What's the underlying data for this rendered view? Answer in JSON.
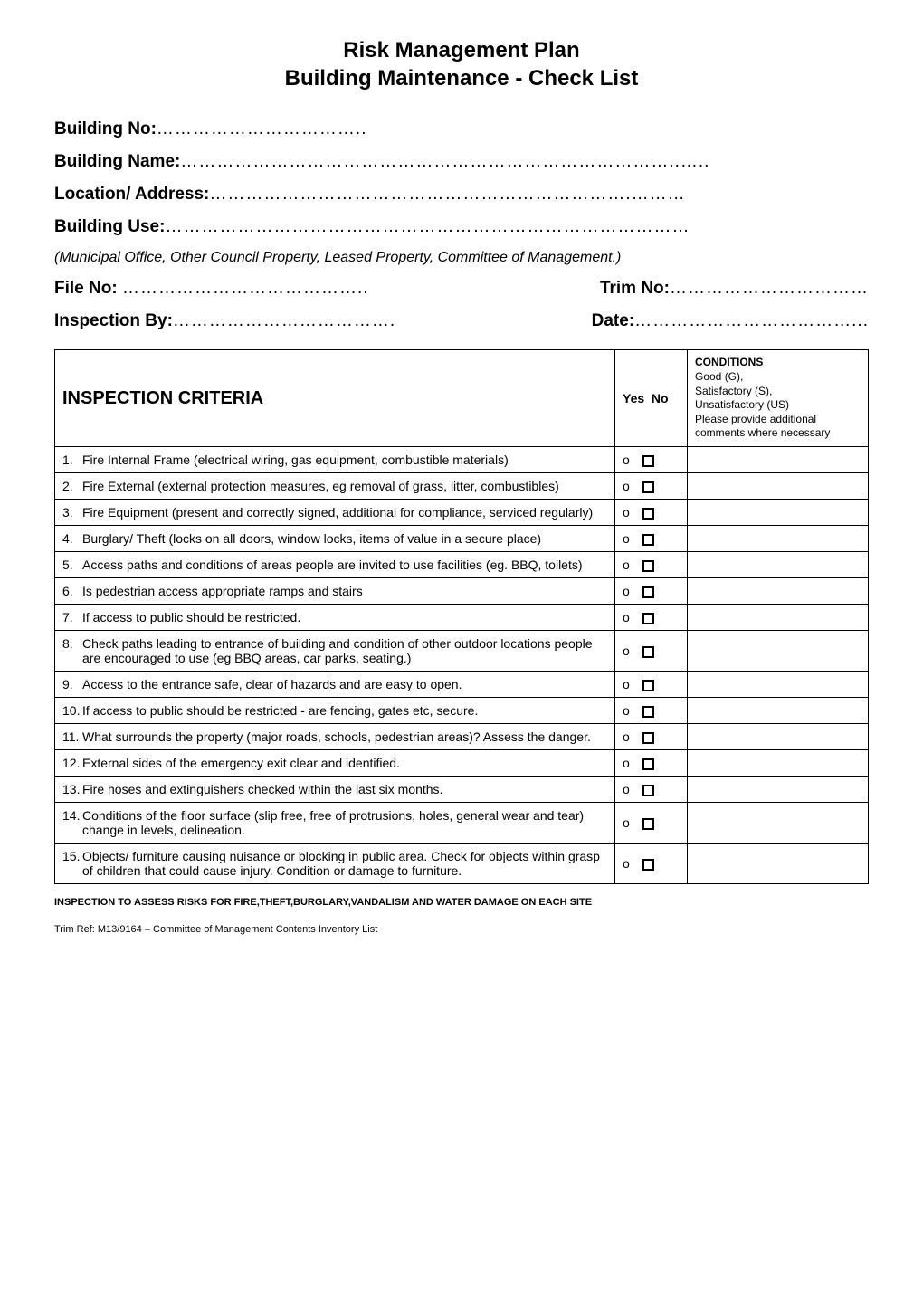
{
  "title": {
    "line1": "Risk Management Plan",
    "line2": "Building Maintenance - Check List"
  },
  "fields": {
    "building_no_label": "Building No",
    "building_name_label": "Building Name",
    "location_label": "Location/ Address",
    "building_use_label": "Building Use",
    "municipal_note": "(Municipal Office, Other Council Property, Leased Property, Committee of Management.)",
    "file_no_label": "File No",
    "trim_no_label": "Trim No:",
    "inspection_by_label": "Inspection By:",
    "date_label": "Date:"
  },
  "dots": {
    "short": "……………………………..",
    "med": "………………………………………………………………………..…..",
    "med2": "…………………………………………………………….………",
    "long": "……………………………………………………………………………",
    "file": "…………………………………..",
    "trim": "……………………………",
    "insp": "……………………………….",
    "date": "………………………………..."
  },
  "table": {
    "header_inspection": "INSPECTION CRITERIA",
    "header_yes": "Yes",
    "header_no": "No",
    "header_conditions_title": "CONDITIONS",
    "header_conditions_body": "Good (G),\nSatisfactory (S),\nUnsatisfactory (US)\nPlease provide additional comments where necessary",
    "rows": [
      {
        "num": "1.",
        "text": "Fire Internal Frame (electrical wiring, gas equipment, combustible materials)"
      },
      {
        "num": "2.",
        "text": "Fire External (external protection measures, eg removal of grass, litter, combustibles)"
      },
      {
        "num": "3.",
        "text": "Fire Equipment (present and correctly signed, additional for compliance, serviced regularly)"
      },
      {
        "num": "4.",
        "text": "Burglary/ Theft (locks on all doors, window locks, items of value in a secure place)"
      },
      {
        "num": "5.",
        "text": "Access paths and conditions of areas people are invited to use facilities (eg. BBQ, toilets)"
      },
      {
        "num": "6.",
        "text": "Is pedestrian access appropriate ramps and stairs"
      },
      {
        "num": "7.",
        "text": "If access to public should be restricted."
      },
      {
        "num": "8.",
        "text": "Check paths leading to entrance of building and condition of other outdoor locations people are encouraged to use (eg BBQ areas, car parks, seating.)"
      },
      {
        "num": "9.",
        "text": "Access to the entrance safe, clear of hazards and are easy to open."
      },
      {
        "num": "10.",
        "text": "If access to public should be restricted - are fencing, gates etc, secure."
      },
      {
        "num": "11.",
        "text": "What surrounds the property (major roads, schools, pedestrian areas)? Assess the danger."
      },
      {
        "num": "12.",
        "text": "External sides of the emergency exit clear and identified."
      },
      {
        "num": "13.",
        "text": "Fire hoses and extinguishers checked within the last six months."
      },
      {
        "num": "14.",
        "text": "Conditions of the floor surface (slip free, free of protrusions, holes, general wear and tear) change in levels, delineation."
      },
      {
        "num": "15.",
        "text": "Objects/ furniture causing nuisance or blocking in public area. Check for objects within grasp of children that could cause injury. Condition or damage to furniture."
      }
    ]
  },
  "footer": {
    "note": "INSPECTION TO ASSESS RISKS FOR FIRE,THEFT,BURGLARY,VANDALISM AND WATER DAMAGE ON EACH SITE",
    "trim_ref": "Trim Ref: M13/9164 – Committee of Management Contents Inventory List"
  },
  "glyphs": {
    "o": "o"
  }
}
